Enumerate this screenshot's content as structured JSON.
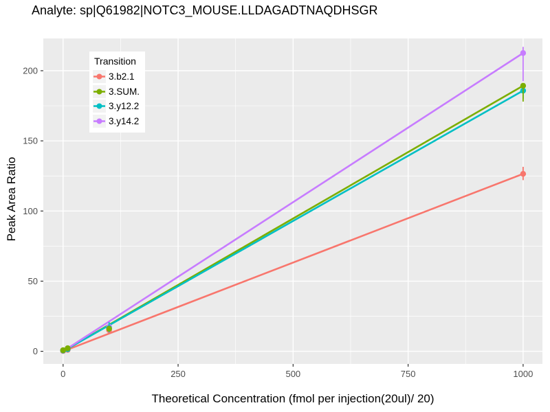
{
  "window": {
    "bg": "#FFFFFF"
  },
  "chart_data": {
    "type": "line",
    "title": "Analyte: sp|Q61982|NOTC3_MOUSE.LLDAGADTNAQDHSGR",
    "xlabel": "Theoretical Concentration (fmol per injection(20ul)/ 20)",
    "ylabel": "Peak Area Ratio",
    "panel_bg": "#EBEBEB",
    "grid_color": "#FFFFFF",
    "tick_color": "#333333",
    "tick_label_color": "#4D4D4D",
    "xlim": [
      -43,
      1042
    ],
    "ylim": [
      -9,
      223
    ],
    "x_ticks": [
      0,
      250,
      500,
      750,
      1000
    ],
    "y_ticks": [
      0,
      50,
      100,
      150,
      200
    ],
    "x_minor_ticks": [
      125,
      375,
      625,
      875
    ],
    "y_minor_ticks": [
      25,
      75,
      125,
      175
    ],
    "grid": true,
    "legend": {
      "title": "Transition",
      "position": "top-left-inside"
    },
    "series": [
      {
        "name": "3.b2.1",
        "color": "#F8766D",
        "fit_line": {
          "x": [
            0,
            1000
          ],
          "y": [
            0,
            126.5
          ]
        },
        "points": [
          {
            "x": 0,
            "y": 0.2
          },
          {
            "x": 10,
            "y": 1.0
          },
          {
            "x": 100,
            "y": 15.0
          },
          {
            "x": 1000,
            "y": 126.5,
            "err_lo": 122.0,
            "err_hi": 131.5
          }
        ]
      },
      {
        "name": "3.SUM.",
        "color": "#7CAE00",
        "fit_line": {
          "x": [
            0,
            1000
          ],
          "y": [
            0,
            189.3
          ]
        },
        "points": [
          {
            "x": 0,
            "y": 0.8
          },
          {
            "x": 10,
            "y": 2.2
          },
          {
            "x": 100,
            "y": 16.1
          },
          {
            "x": 1000,
            "y": 189.3,
            "err_lo": 178.0,
            "err_hi": 190.5
          }
        ]
      },
      {
        "name": "3.y12.2",
        "color": "#00BFC4",
        "fit_line": {
          "x": [
            0,
            1000
          ],
          "y": [
            0,
            185.8
          ]
        },
        "points": [
          {
            "x": 0,
            "y": 0.5
          },
          {
            "x": 10,
            "y": 1.5
          },
          {
            "x": 100,
            "y": 16.5,
            "err_lo": 13.5,
            "err_hi": 20.8
          },
          {
            "x": 1000,
            "y": 185.8,
            "err_lo": 180.0,
            "err_hi": 187.5
          }
        ]
      },
      {
        "name": "3.y14.2",
        "color": "#C77CFF",
        "fit_line": {
          "x": [
            0,
            1000
          ],
          "y": [
            0,
            212.6
          ]
        },
        "points": [
          {
            "x": 0,
            "y": 0.7
          },
          {
            "x": 10,
            "y": 2.0
          },
          {
            "x": 100,
            "y": 17.5
          },
          {
            "x": 1000,
            "y": 212.6,
            "err_lo": 192.5,
            "err_hi": 217.0
          }
        ]
      }
    ]
  }
}
